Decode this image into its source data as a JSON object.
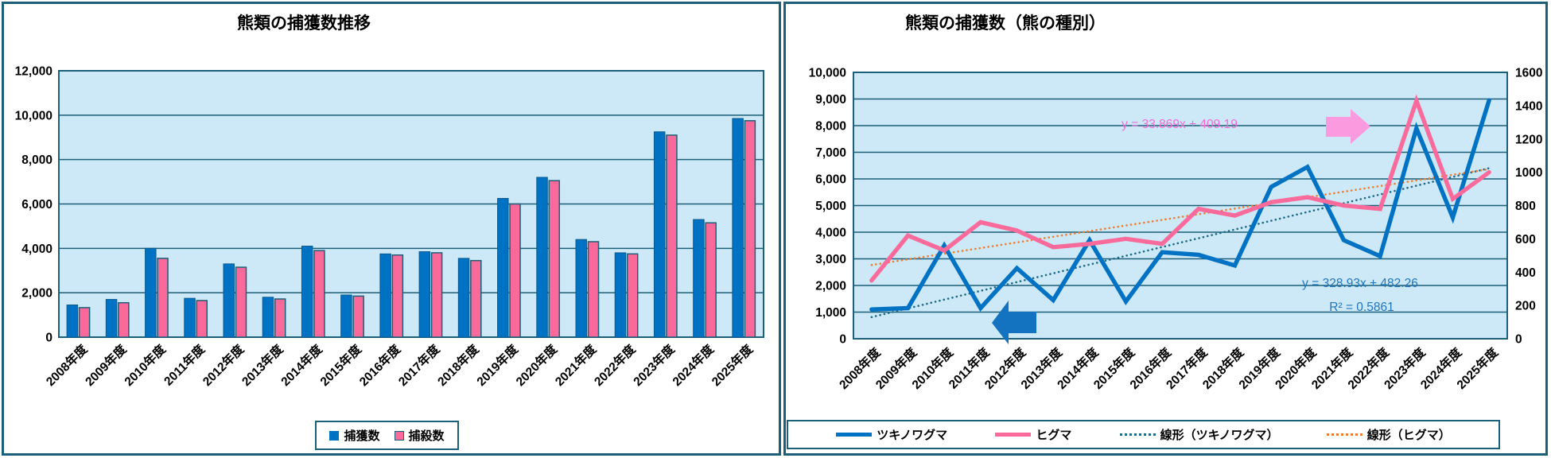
{
  "theme": {
    "background": "#ffffff",
    "panel_border": "#1b5f78",
    "plot_bg": "#cde9f8",
    "grid_line": "#1b5f78",
    "axis_text": "#000000",
    "capture_blue": "#0072c4",
    "kill_pink": "#f96a9b",
    "trend_teal": "#1e6b88",
    "trend_orange": "#ed7d31",
    "formula_pink": "#f46ad8",
    "formula_blue": "#2176bd",
    "arrow_pink": "#fb9ade",
    "arrow_blue": "#1473c0"
  },
  "left_chart": {
    "title": "熊類の捕獲数推移",
    "legend": [
      {
        "label": "捕獲数"
      },
      {
        "label": "捕殺数"
      }
    ]
  },
  "right_chart": {
    "title": "熊類の捕獲数（熊の種別）",
    "legend": [
      {
        "label": "ツキノワグマ"
      },
      {
        "label": "ヒグマ"
      },
      {
        "label": "線形（ツキノワグマ）"
      },
      {
        "label": "線形（ヒグマ）"
      }
    ]
  },
  "chart_data": [
    {
      "type": "bar",
      "title": "熊類の捕獲数推移",
      "categories": [
        "2008年度",
        "2009年度",
        "2010年度",
        "2011年度",
        "2012年度",
        "2013年度",
        "2014年度",
        "2015年度",
        "2016年度",
        "2017年度",
        "2018年度",
        "2019年度",
        "2020年度",
        "2021年度",
        "2022年度",
        "2023年度",
        "2024年度",
        "2025年度"
      ],
      "series": [
        {
          "name": "捕獲数",
          "color": "#0072c4",
          "values": [
            1450,
            1700,
            4000,
            1750,
            3300,
            1800,
            4100,
            1900,
            3750,
            3850,
            3550,
            6250,
            7200,
            4400,
            3800,
            9250,
            5300,
            9850
          ]
        },
        {
          "name": "捕殺数",
          "color": "#f96a9b",
          "values": [
            1330,
            1550,
            3550,
            1650,
            3150,
            1720,
            3900,
            1850,
            3700,
            3800,
            3450,
            6000,
            7050,
            4300,
            3750,
            9100,
            5150,
            9750
          ]
        }
      ],
      "xlabel": "",
      "ylabel": "",
      "ylim": [
        0,
        12000
      ],
      "ytick_step": 2000,
      "y_ticks": [
        "0",
        "2,000",
        "4,000",
        "6,000",
        "8,000",
        "10,000",
        "12,000"
      ],
      "grid": true,
      "legend_position": "bottom"
    },
    {
      "type": "line",
      "title": "熊類の捕獲数（熊の種別）",
      "categories": [
        "2008年度",
        "2009年度",
        "2010年度",
        "2011年度",
        "2012年度",
        "2013年度",
        "2014年度",
        "2015年度",
        "2016年度",
        "2017年度",
        "2018年度",
        "2019年度",
        "2020年度",
        "2021年度",
        "2022年度",
        "2023年度",
        "2024年度",
        "2025年度"
      ],
      "series": [
        {
          "name": "ツキノワグマ",
          "axis": "left",
          "style": "solid",
          "color": "#0072c4",
          "values": [
            1100,
            1150,
            3500,
            1150,
            2650,
            1450,
            3700,
            1400,
            3250,
            3150,
            2750,
            5700,
            6450,
            3700,
            3100,
            7900,
            4550,
            8950
          ]
        },
        {
          "name": "ヒグマ",
          "axis": "right",
          "style": "solid",
          "color": "#fa6b9b",
          "values": [
            350,
            620,
            530,
            700,
            650,
            550,
            570,
            600,
            570,
            780,
            740,
            820,
            850,
            800,
            780,
            1430,
            840,
            1000
          ]
        },
        {
          "name": "線形（ツキノワグマ）",
          "axis": "left",
          "style": "dotted",
          "color": "#1e6b88",
          "trend": {
            "slope": 328.93,
            "intercept": 482.26
          }
        },
        {
          "name": "線形（ヒグマ）",
          "axis": "right",
          "style": "dotted",
          "color": "#ed7d31",
          "trend": {
            "slope": 33.869,
            "intercept": 409.19
          }
        }
      ],
      "xlabel": "",
      "ylabel": "",
      "left_ylim": [
        0,
        10000
      ],
      "left_ytick_step": 1000,
      "left_y_ticks": [
        "0",
        "1,000",
        "2,000",
        "3,000",
        "4,000",
        "5,000",
        "6,000",
        "7,000",
        "8,000",
        "9,000",
        "10,000"
      ],
      "right_ylim": [
        0,
        1600
      ],
      "right_ytick_step": 200,
      "right_y_ticks": [
        "0",
        "200",
        "400",
        "600",
        "800",
        "1000",
        "1200",
        "1400",
        "1600"
      ],
      "grid": true,
      "legend_position": "bottom",
      "annotations": {
        "higuma_trend_formula": "y = 33.869x + 409.19",
        "tsukinowaguma_trend_formula": "y = 328.93x + 482.26",
        "tsukinowaguma_trend_r2": "R² = 0.5861"
      }
    }
  ]
}
